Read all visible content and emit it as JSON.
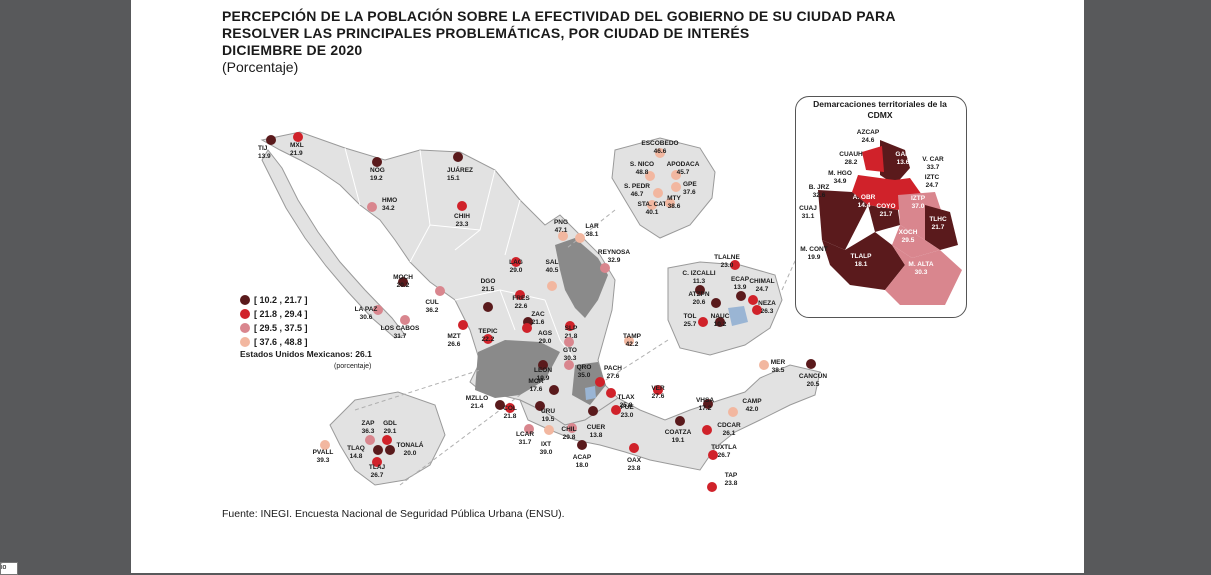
{
  "doc": {
    "title": "PERCEPCIÓN DE LA POBLACIÓN SOBRE LA EFECTIVIDAD DEL GOBIERNO DE SU CIUDAD PARA\nRESOLVER LAS PRINCIPALES PROBLEMÁTICAS, POR CIUDAD DE INTERÉS\nDICIEMBRE DE 2020",
    "subtitle": "(Porcentaje)",
    "source": "Fuente: INEGI. Encuesta Nacional de Seguridad Pública Urbana (ENSU).",
    "corner": "io"
  },
  "legend": [
    {
      "label": "[ 10.2 , 21.7 ]",
      "color": "#5a1a1c"
    },
    {
      "label": "[ 21.8 , 29.4 ]",
      "color": "#d0222a"
    },
    {
      "label": "[ 29.5 , 37.5 ]",
      "color": "#d9868e"
    },
    {
      "label": "[ 37.6 , 48.8 ]",
      "color": "#f2b7a0"
    }
  ],
  "national": {
    "label": "Estados Unidos Mexicanos:",
    "value": "26.1",
    "note": "(porcentaje)"
  },
  "cdmx": {
    "title": "Demarcaciones territoriales de la CDMX",
    "labels": [
      {
        "name": "AZCAP",
        "value": "24.6"
      },
      {
        "name": "CUAUH",
        "value": "28.2"
      },
      {
        "name": "GAM",
        "value": "13.6"
      },
      {
        "name": "V. CAR",
        "value": "33.7"
      },
      {
        "name": "M. HGO",
        "value": "34.9"
      },
      {
        "name": "IZTC",
        "value": "24.7"
      },
      {
        "name": "B. JRZ",
        "value": "32.6"
      },
      {
        "name": "A. OBR",
        "value": "14.4"
      },
      {
        "name": "COYO",
        "value": "21.7"
      },
      {
        "name": "IZTP",
        "value": "37.0"
      },
      {
        "name": "CUAJ",
        "value": "31.1"
      },
      {
        "name": "TLHC",
        "value": "21.7"
      },
      {
        "name": "XOCH",
        "value": "29.5"
      },
      {
        "name": "M. CONT",
        "value": "19.9"
      },
      {
        "name": "TLALP",
        "value": "18.1"
      },
      {
        "name": "M. ALTA",
        "value": "30.3"
      }
    ]
  },
  "cities": [
    {
      "name": "TIJ",
      "value": "13.9",
      "cls": 0
    },
    {
      "name": "MXL",
      "value": "21.9",
      "cls": 1
    },
    {
      "name": "NOG",
      "value": "19.2",
      "cls": 0
    },
    {
      "name": "JUÁREZ",
      "value": "15.1",
      "cls": 0
    },
    {
      "name": "HMO",
      "value": "34.2",
      "cls": 2
    },
    {
      "name": "CHIH",
      "value": "23.3",
      "cls": 1
    },
    {
      "name": "ESCOBEDO",
      "value": "46.6",
      "cls": 3
    },
    {
      "name": "S. NICO",
      "value": "48.8",
      "cls": 3
    },
    {
      "name": "APODACA",
      "value": "45.7",
      "cls": 3
    },
    {
      "name": "GPE",
      "value": "37.6",
      "cls": 3
    },
    {
      "name": "S. PEDR",
      "value": "46.7",
      "cls": 3
    },
    {
      "name": "STA. CAT",
      "value": "40.1",
      "cls": 3
    },
    {
      "name": "MTY",
      "value": "38.6",
      "cls": 3
    },
    {
      "name": "PNG",
      "value": "47.1",
      "cls": 3
    },
    {
      "name": "LAR",
      "value": "38.1",
      "cls": 3
    },
    {
      "name": "REYNOSA",
      "value": "32.9",
      "cls": 2
    },
    {
      "name": "LAG",
      "value": "29.0",
      "cls": 1
    },
    {
      "name": "SAL",
      "value": "40.5",
      "cls": 3
    },
    {
      "name": "MOCH",
      "value": "20.2",
      "cls": 0
    },
    {
      "name": "DGO",
      "value": "21.5",
      "cls": 0
    },
    {
      "name": "LA PAZ",
      "value": "30.6",
      "cls": 2
    },
    {
      "name": "CUL",
      "value": "36.2",
      "cls": 2
    },
    {
      "name": "FRES",
      "value": "22.6",
      "cls": 1
    },
    {
      "name": "ZAC",
      "value": "21.6",
      "cls": 0
    },
    {
      "name": "LOS CABOS",
      "value": "31.7",
      "cls": 2
    },
    {
      "name": "MZT",
      "value": "26.6",
      "cls": 1
    },
    {
      "name": "AGS",
      "value": "29.0",
      "cls": 1
    },
    {
      "name": "SLP",
      "value": "21.8",
      "cls": 1
    },
    {
      "name": "TEPIC",
      "value": "22.2",
      "cls": 1
    },
    {
      "name": "GTO",
      "value": "30.3",
      "cls": 2
    },
    {
      "name": "TAMP",
      "value": "42.2",
      "cls": 3
    },
    {
      "name": "LEON",
      "value": "19.9",
      "cls": 0
    },
    {
      "name": "QRO",
      "value": "35.0",
      "cls": 2
    },
    {
      "name": "MOR",
      "value": "17.6",
      "cls": 0
    },
    {
      "name": "PACH",
      "value": "27.6",
      "cls": 1
    },
    {
      "name": "TLAX",
      "value": "25.8",
      "cls": 1
    },
    {
      "name": "VER",
      "value": "27.6",
      "cls": 1
    },
    {
      "name": "MZLLO",
      "value": "21.4",
      "cls": 0
    },
    {
      "name": "URU",
      "value": "19.5",
      "cls": 0
    },
    {
      "name": "COL",
      "value": "21.8",
      "cls": 1
    },
    {
      "name": "CUER",
      "value": "13.8",
      "cls": 0
    },
    {
      "name": "PUE",
      "value": "23.0",
      "cls": 1
    },
    {
      "name": "LCAR",
      "value": "31.7",
      "cls": 2
    },
    {
      "name": "CHIL",
      "value": "29.8",
      "cls": 2
    },
    {
      "name": "IXT",
      "value": "39.0",
      "cls": 3
    },
    {
      "name": "ACAP",
      "value": "18.0",
      "cls": 0
    },
    {
      "name": "OAX",
      "value": "23.8",
      "cls": 1
    },
    {
      "name": "COATZA",
      "value": "19.1",
      "cls": 0
    },
    {
      "name": "VHSA",
      "value": "17.2",
      "cls": 0
    },
    {
      "name": "CDCAR",
      "value": "26.1",
      "cls": 1
    },
    {
      "name": "CAMP",
      "value": "42.0",
      "cls": 3
    },
    {
      "name": "MER",
      "value": "38.5",
      "cls": 3
    },
    {
      "name": "CANCÚN",
      "value": "20.5",
      "cls": 0
    },
    {
      "name": "TUXTLA",
      "value": "26.7",
      "cls": 1
    },
    {
      "name": "TAP",
      "value": "23.8",
      "cls": 1
    },
    {
      "name": "ZAP",
      "value": "36.3",
      "cls": 2
    },
    {
      "name": "GDL",
      "value": "29.1",
      "cls": 1
    },
    {
      "name": "PVALL",
      "value": "39.3",
      "cls": 3
    },
    {
      "name": "TLAQ",
      "value": "14.8",
      "cls": 0
    },
    {
      "name": "TONALÁ",
      "value": "20.0",
      "cls": 0
    },
    {
      "name": "TLAJ",
      "value": "26.7",
      "cls": 1
    },
    {
      "name": "TLALNE",
      "value": "23.0",
      "cls": 1
    },
    {
      "name": "C. IZCALLI",
      "value": "11.3",
      "cls": 0
    },
    {
      "name": "ATZPN",
      "value": "20.6",
      "cls": 0
    },
    {
      "name": "ECAP",
      "value": "13.9",
      "cls": 0
    },
    {
      "name": "CHIMAL",
      "value": "24.7",
      "cls": 1
    },
    {
      "name": "NEZA",
      "value": "26.3",
      "cls": 1
    },
    {
      "name": "TOL",
      "value": "25.7",
      "cls": 1
    },
    {
      "name": "NAUC",
      "value": "10.2",
      "cls": 0
    }
  ]
}
